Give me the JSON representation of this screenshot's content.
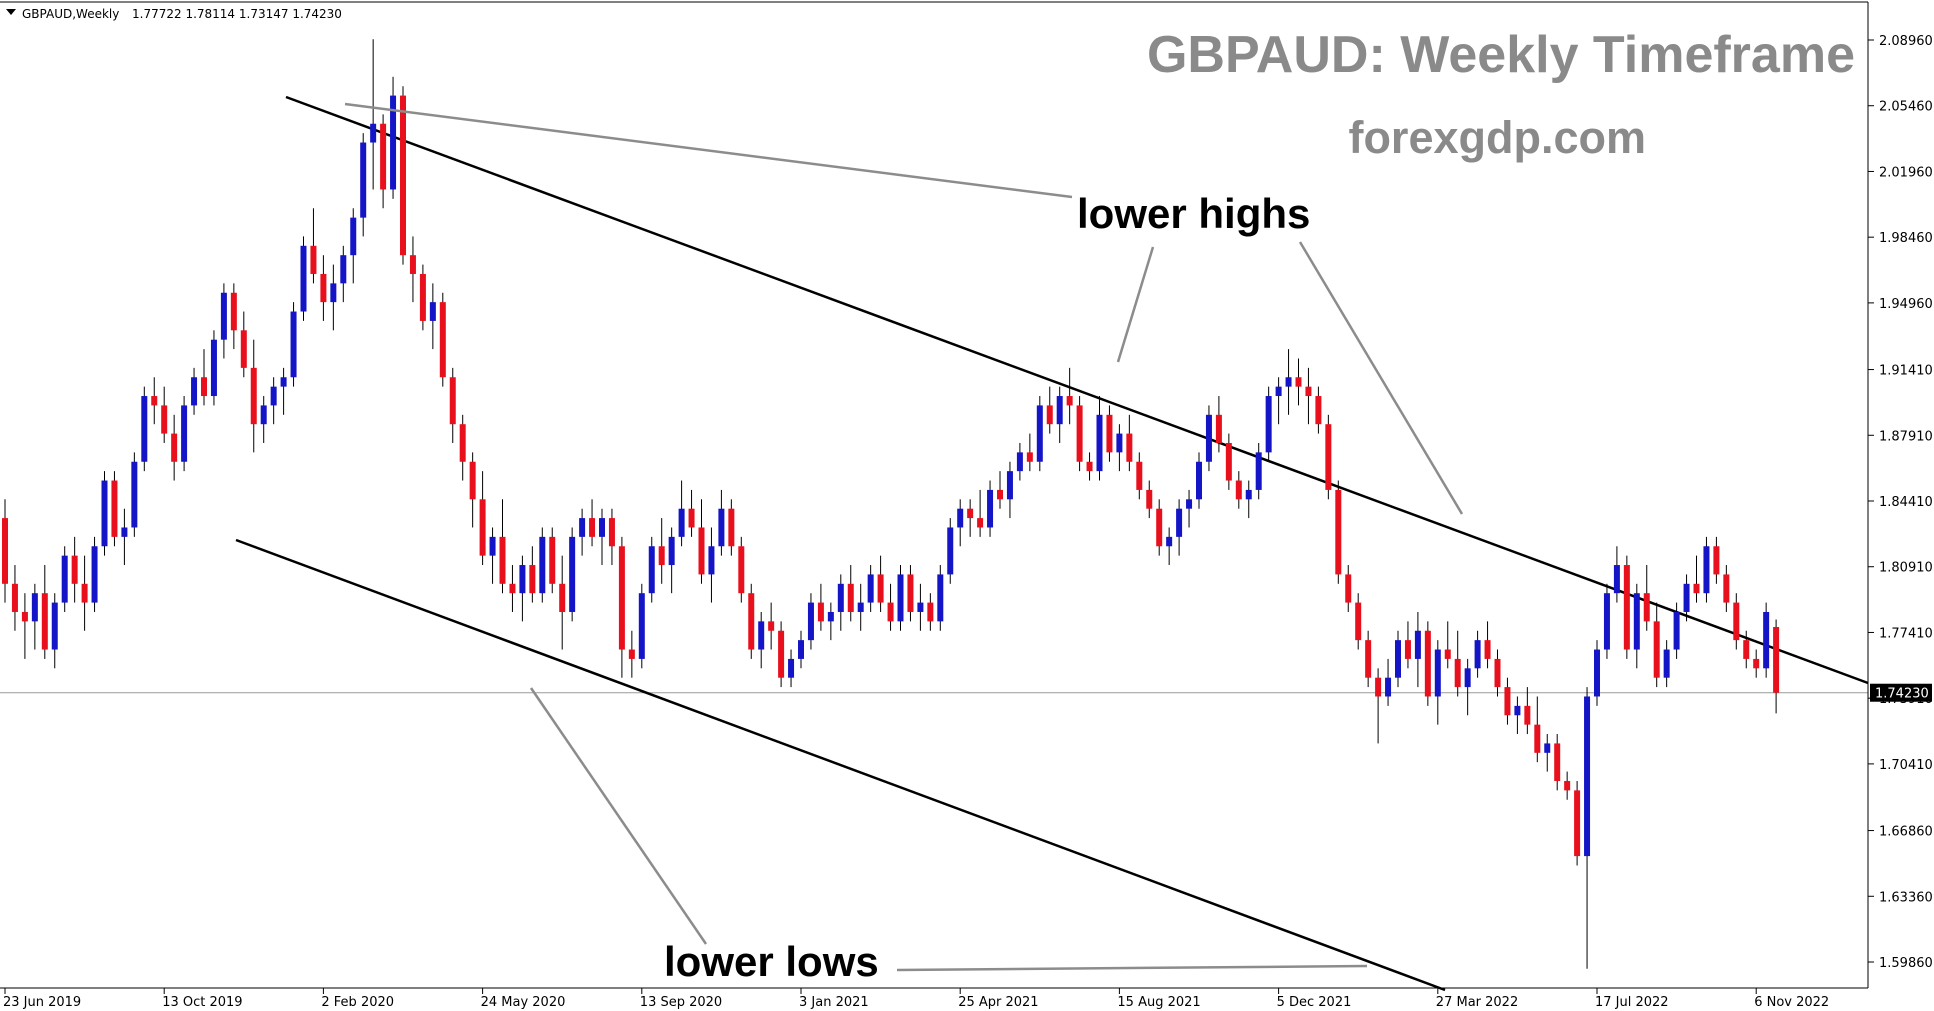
{
  "header": {
    "symbol": "GBPAUD,Weekly",
    "ohlc": "1.77722 1.78114 1.73147 1.74230"
  },
  "title": "GBPAUD: Weekly Timeframe",
  "subtitle": "forexgdp.com",
  "annotations": {
    "lower_highs": "lower highs",
    "lower_lows": "lower lows"
  },
  "current_price_label": "1.74230",
  "colors": {
    "bull": "#1515c8",
    "bear": "#e8101c",
    "wick": "#000000",
    "trendline": "#000000",
    "pointer": "#8c8c8c",
    "title": "#8a8a8a",
    "price_line": "#9a9a9a",
    "price_label_bg": "#000000"
  },
  "chart_data": {
    "type": "candlestick",
    "title": "GBPAUD: Weekly Timeframe",
    "xlabel": "",
    "ylabel": "",
    "ylim": [
      1.575,
      2.105
    ],
    "y_ticks": [
      "2.08960",
      "2.05460",
      "2.01960",
      "1.98460",
      "1.94960",
      "1.91410",
      "1.87910",
      "1.84410",
      "1.80910",
      "1.77410",
      "1.73910",
      "1.70410",
      "1.66860",
      "1.63360",
      "1.59860"
    ],
    "x_ticks": [
      {
        "label": "23 Jun 2019",
        "index": 0
      },
      {
        "label": "13 Oct 2019",
        "index": 16
      },
      {
        "label": "2 Feb 2020",
        "index": 32
      },
      {
        "label": "24 May 2020",
        "index": 48
      },
      {
        "label": "13 Sep 2020",
        "index": 64
      },
      {
        "label": "3 Jan 2021",
        "index": 80
      },
      {
        "label": "25 Apr 2021",
        "index": 96
      },
      {
        "label": "15 Aug 2021",
        "index": 112
      },
      {
        "label": "5 Dec 2021",
        "index": 128
      },
      {
        "label": "27 Mar 2022",
        "index": 144
      },
      {
        "label": "17 Jul 2022",
        "index": 160
      },
      {
        "label": "6 Nov 2022",
        "index": 176
      }
    ],
    "ohlc": [
      [
        1.835,
        1.845,
        1.79,
        1.8
      ],
      [
        1.8,
        1.81,
        1.775,
        1.785
      ],
      [
        1.785,
        1.795,
        1.76,
        1.78
      ],
      [
        1.78,
        1.8,
        1.765,
        1.795
      ],
      [
        1.795,
        1.81,
        1.76,
        1.765
      ],
      [
        1.765,
        1.795,
        1.755,
        1.79
      ],
      [
        1.79,
        1.82,
        1.785,
        1.815
      ],
      [
        1.815,
        1.825,
        1.79,
        1.8
      ],
      [
        1.8,
        1.815,
        1.775,
        1.79
      ],
      [
        1.79,
        1.825,
        1.785,
        1.82
      ],
      [
        1.82,
        1.86,
        1.815,
        1.855
      ],
      [
        1.855,
        1.86,
        1.82,
        1.825
      ],
      [
        1.825,
        1.84,
        1.81,
        1.83
      ],
      [
        1.83,
        1.87,
        1.825,
        1.865
      ],
      [
        1.865,
        1.905,
        1.86,
        1.9
      ],
      [
        1.9,
        1.91,
        1.885,
        1.895
      ],
      [
        1.895,
        1.905,
        1.875,
        1.88
      ],
      [
        1.88,
        1.89,
        1.855,
        1.865
      ],
      [
        1.865,
        1.9,
        1.86,
        1.895
      ],
      [
        1.895,
        1.915,
        1.89,
        1.91
      ],
      [
        1.91,
        1.925,
        1.895,
        1.9
      ],
      [
        1.9,
        1.935,
        1.895,
        1.93
      ],
      [
        1.93,
        1.96,
        1.92,
        1.955
      ],
      [
        1.955,
        1.96,
        1.925,
        1.935
      ],
      [
        1.935,
        1.945,
        1.91,
        1.915
      ],
      [
        1.915,
        1.93,
        1.87,
        1.885
      ],
      [
        1.885,
        1.9,
        1.875,
        1.895
      ],
      [
        1.895,
        1.91,
        1.885,
        1.905
      ],
      [
        1.905,
        1.915,
        1.89,
        1.91
      ],
      [
        1.91,
        1.95,
        1.905,
        1.945
      ],
      [
        1.945,
        1.985,
        1.94,
        1.98
      ],
      [
        1.98,
        2.0,
        1.96,
        1.965
      ],
      [
        1.965,
        1.975,
        1.94,
        1.95
      ],
      [
        1.95,
        1.97,
        1.935,
        1.96
      ],
      [
        1.96,
        1.98,
        1.95,
        1.975
      ],
      [
        1.975,
        2.0,
        1.96,
        1.995
      ],
      [
        1.995,
        2.04,
        1.985,
        2.035
      ],
      [
        2.035,
        2.09,
        2.01,
        2.045
      ],
      [
        2.045,
        2.05,
        2.0,
        2.01
      ],
      [
        2.01,
        2.07,
        2.005,
        2.06
      ],
      [
        2.06,
        2.065,
        1.97,
        1.975
      ],
      [
        1.975,
        1.985,
        1.95,
        1.965
      ],
      [
        1.965,
        1.97,
        1.935,
        1.94
      ],
      [
        1.94,
        1.96,
        1.925,
        1.95
      ],
      [
        1.95,
        1.955,
        1.905,
        1.91
      ],
      [
        1.91,
        1.915,
        1.875,
        1.885
      ],
      [
        1.885,
        1.89,
        1.855,
        1.865
      ],
      [
        1.865,
        1.87,
        1.83,
        1.845
      ],
      [
        1.845,
        1.86,
        1.81,
        1.815
      ],
      [
        1.815,
        1.83,
        1.8,
        1.825
      ],
      [
        1.825,
        1.845,
        1.795,
        1.8
      ],
      [
        1.8,
        1.81,
        1.785,
        1.795
      ],
      [
        1.795,
        1.815,
        1.78,
        1.81
      ],
      [
        1.81,
        1.82,
        1.79,
        1.795
      ],
      [
        1.795,
        1.83,
        1.79,
        1.825
      ],
      [
        1.825,
        1.83,
        1.795,
        1.8
      ],
      [
        1.8,
        1.815,
        1.765,
        1.785
      ],
      [
        1.785,
        1.83,
        1.78,
        1.825
      ],
      [
        1.825,
        1.84,
        1.815,
        1.835
      ],
      [
        1.835,
        1.845,
        1.82,
        1.825
      ],
      [
        1.825,
        1.84,
        1.81,
        1.835
      ],
      [
        1.835,
        1.84,
        1.81,
        1.82
      ],
      [
        1.82,
        1.825,
        1.75,
        1.765
      ],
      [
        1.765,
        1.775,
        1.75,
        1.76
      ],
      [
        1.76,
        1.8,
        1.755,
        1.795
      ],
      [
        1.795,
        1.825,
        1.79,
        1.82
      ],
      [
        1.82,
        1.835,
        1.8,
        1.81
      ],
      [
        1.81,
        1.83,
        1.795,
        1.825
      ],
      [
        1.825,
        1.855,
        1.82,
        1.84
      ],
      [
        1.84,
        1.85,
        1.825,
        1.83
      ],
      [
        1.83,
        1.845,
        1.8,
        1.805
      ],
      [
        1.805,
        1.83,
        1.79,
        1.82
      ],
      [
        1.82,
        1.85,
        1.815,
        1.84
      ],
      [
        1.84,
        1.845,
        1.815,
        1.82
      ],
      [
        1.82,
        1.825,
        1.79,
        1.795
      ],
      [
        1.795,
        1.8,
        1.76,
        1.765
      ],
      [
        1.765,
        1.785,
        1.755,
        1.78
      ],
      [
        1.78,
        1.79,
        1.765,
        1.775
      ],
      [
        1.775,
        1.78,
        1.745,
        1.75
      ],
      [
        1.75,
        1.765,
        1.745,
        1.76
      ],
      [
        1.76,
        1.775,
        1.755,
        1.77
      ],
      [
        1.77,
        1.795,
        1.765,
        1.79
      ],
      [
        1.79,
        1.8,
        1.775,
        1.78
      ],
      [
        1.78,
        1.79,
        1.77,
        1.785
      ],
      [
        1.785,
        1.805,
        1.775,
        1.8
      ],
      [
        1.8,
        1.81,
        1.78,
        1.785
      ],
      [
        1.785,
        1.8,
        1.775,
        1.79
      ],
      [
        1.79,
        1.81,
        1.785,
        1.805
      ],
      [
        1.805,
        1.815,
        1.785,
        1.79
      ],
      [
        1.79,
        1.8,
        1.775,
        1.78
      ],
      [
        1.78,
        1.81,
        1.775,
        1.805
      ],
      [
        1.805,
        1.81,
        1.78,
        1.785
      ],
      [
        1.785,
        1.8,
        1.775,
        1.79
      ],
      [
        1.79,
        1.795,
        1.775,
        1.78
      ],
      [
        1.78,
        1.81,
        1.775,
        1.805
      ],
      [
        1.805,
        1.835,
        1.8,
        1.83
      ],
      [
        1.83,
        1.845,
        1.82,
        1.84
      ],
      [
        1.84,
        1.845,
        1.825,
        1.835
      ],
      [
        1.835,
        1.85,
        1.825,
        1.83
      ],
      [
        1.83,
        1.855,
        1.825,
        1.85
      ],
      [
        1.85,
        1.86,
        1.84,
        1.845
      ],
      [
        1.845,
        1.865,
        1.835,
        1.86
      ],
      [
        1.86,
        1.875,
        1.855,
        1.87
      ],
      [
        1.87,
        1.88,
        1.86,
        1.865
      ],
      [
        1.865,
        1.9,
        1.86,
        1.895
      ],
      [
        1.895,
        1.905,
        1.88,
        1.885
      ],
      [
        1.885,
        1.905,
        1.875,
        1.9
      ],
      [
        1.9,
        1.915,
        1.885,
        1.895
      ],
      [
        1.895,
        1.9,
        1.86,
        1.865
      ],
      [
        1.865,
        1.87,
        1.855,
        1.86
      ],
      [
        1.86,
        1.9,
        1.855,
        1.89
      ],
      [
        1.89,
        1.895,
        1.865,
        1.87
      ],
      [
        1.87,
        1.885,
        1.86,
        1.88
      ],
      [
        1.88,
        1.89,
        1.86,
        1.865
      ],
      [
        1.865,
        1.87,
        1.845,
        1.85
      ],
      [
        1.85,
        1.855,
        1.835,
        1.84
      ],
      [
        1.84,
        1.845,
        1.815,
        1.82
      ],
      [
        1.82,
        1.83,
        1.81,
        1.825
      ],
      [
        1.825,
        1.845,
        1.815,
        1.84
      ],
      [
        1.84,
        1.85,
        1.83,
        1.845
      ],
      [
        1.845,
        1.87,
        1.84,
        1.865
      ],
      [
        1.865,
        1.895,
        1.86,
        1.89
      ],
      [
        1.89,
        1.9,
        1.87,
        1.875
      ],
      [
        1.875,
        1.88,
        1.85,
        1.855
      ],
      [
        1.855,
        1.86,
        1.84,
        1.845
      ],
      [
        1.845,
        1.855,
        1.835,
        1.85
      ],
      [
        1.85,
        1.875,
        1.845,
        1.87
      ],
      [
        1.87,
        1.905,
        1.865,
        1.9
      ],
      [
        1.9,
        1.91,
        1.885,
        1.905
      ],
      [
        1.905,
        1.925,
        1.89,
        1.91
      ],
      [
        1.91,
        1.92,
        1.895,
        1.905
      ],
      [
        1.905,
        1.915,
        1.885,
        1.9
      ],
      [
        1.9,
        1.905,
        1.88,
        1.885
      ],
      [
        1.885,
        1.89,
        1.845,
        1.85
      ],
      [
        1.85,
        1.855,
        1.8,
        1.805
      ],
      [
        1.805,
        1.81,
        1.785,
        1.79
      ],
      [
        1.79,
        1.795,
        1.765,
        1.77
      ],
      [
        1.77,
        1.775,
        1.745,
        1.75
      ],
      [
        1.75,
        1.755,
        1.715,
        1.74
      ],
      [
        1.74,
        1.76,
        1.735,
        1.75
      ],
      [
        1.75,
        1.775,
        1.745,
        1.77
      ],
      [
        1.77,
        1.78,
        1.755,
        1.76
      ],
      [
        1.76,
        1.785,
        1.745,
        1.775
      ],
      [
        1.775,
        1.78,
        1.735,
        1.74
      ],
      [
        1.74,
        1.77,
        1.725,
        1.765
      ],
      [
        1.765,
        1.78,
        1.755,
        1.76
      ],
      [
        1.76,
        1.775,
        1.74,
        1.745
      ],
      [
        1.745,
        1.76,
        1.73,
        1.755
      ],
      [
        1.755,
        1.775,
        1.75,
        1.77
      ],
      [
        1.77,
        1.78,
        1.755,
        1.76
      ],
      [
        1.76,
        1.765,
        1.74,
        1.745
      ],
      [
        1.745,
        1.75,
        1.725,
        1.73
      ],
      [
        1.73,
        1.74,
        1.72,
        1.735
      ],
      [
        1.735,
        1.745,
        1.72,
        1.725
      ],
      [
        1.725,
        1.74,
        1.705,
        1.71
      ],
      [
        1.71,
        1.72,
        1.7,
        1.715
      ],
      [
        1.715,
        1.72,
        1.69,
        1.695
      ],
      [
        1.695,
        1.7,
        1.685,
        1.69
      ],
      [
        1.69,
        1.695,
        1.65,
        1.655
      ],
      [
        1.655,
        1.745,
        1.595,
        1.74
      ],
      [
        1.74,
        1.77,
        1.735,
        1.765
      ],
      [
        1.765,
        1.8,
        1.76,
        1.795
      ],
      [
        1.795,
        1.82,
        1.79,
        1.81
      ],
      [
        1.81,
        1.815,
        1.76,
        1.765
      ],
      [
        1.765,
        1.8,
        1.755,
        1.795
      ],
      [
        1.795,
        1.81,
        1.775,
        1.78
      ],
      [
        1.78,
        1.79,
        1.745,
        1.75
      ],
      [
        1.75,
        1.77,
        1.745,
        1.765
      ],
      [
        1.765,
        1.79,
        1.76,
        1.785
      ],
      [
        1.785,
        1.805,
        1.78,
        1.8
      ],
      [
        1.8,
        1.815,
        1.79,
        1.795
      ],
      [
        1.795,
        1.825,
        1.79,
        1.82
      ],
      [
        1.82,
        1.825,
        1.8,
        1.805
      ],
      [
        1.805,
        1.81,
        1.785,
        1.79
      ],
      [
        1.79,
        1.795,
        1.765,
        1.77
      ],
      [
        1.77,
        1.775,
        1.755,
        1.76
      ],
      [
        1.76,
        1.765,
        1.75,
        1.755
      ],
      [
        1.755,
        1.79,
        1.75,
        1.785
      ],
      [
        1.777,
        1.781,
        1.731,
        1.742
      ]
    ]
  }
}
